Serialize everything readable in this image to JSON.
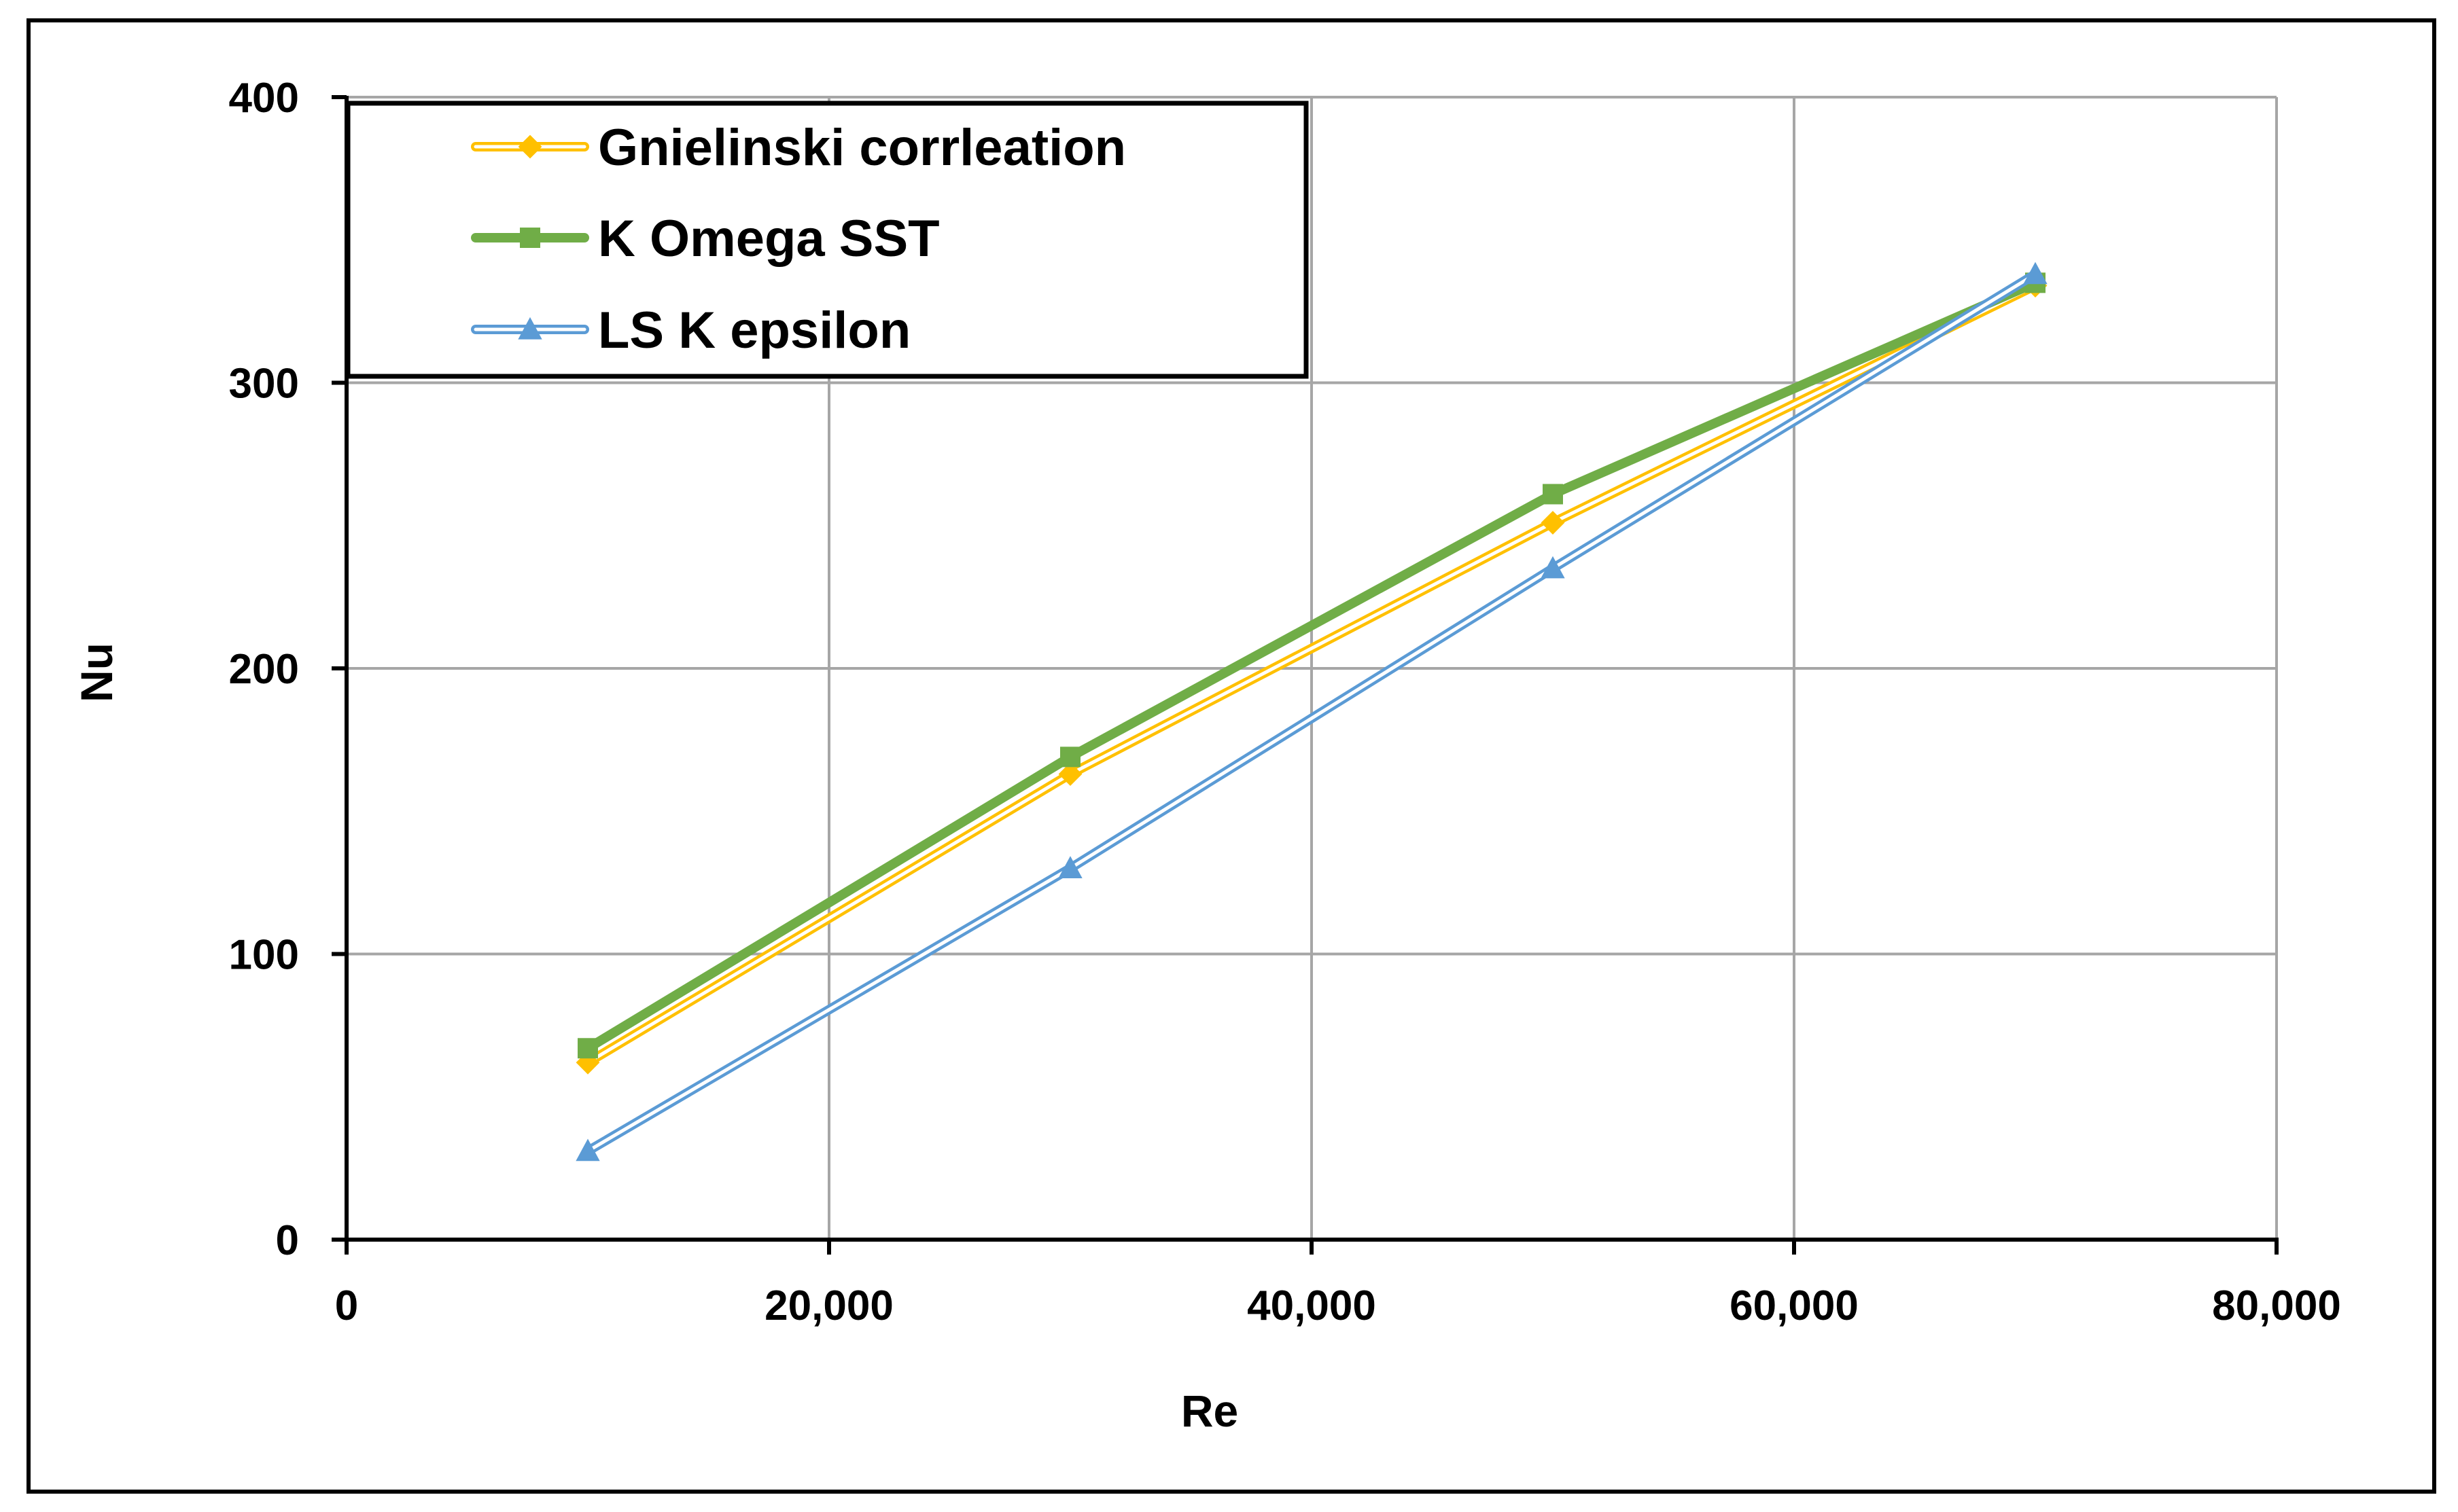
{
  "chart_data": {
    "type": "line",
    "title": "",
    "xlabel": "Re",
    "ylabel": "Nu",
    "xlim": [
      0,
      80000
    ],
    "ylim": [
      0,
      400
    ],
    "x_ticks": [
      0,
      20000,
      40000,
      60000,
      80000
    ],
    "x_tick_labels": [
      "0",
      "20,000",
      "40,000",
      "60,000",
      "80,000"
    ],
    "y_ticks": [
      0,
      100,
      200,
      300,
      400
    ],
    "y_tick_labels": [
      "0",
      "100",
      "200",
      "300",
      "400"
    ],
    "grid": true,
    "legend_position": "top-left",
    "x": [
      10000,
      30000,
      50000,
      70000
    ],
    "series": [
      {
        "name": "Gnielinski corrleation",
        "values": [
          62,
          163,
          251,
          334
        ],
        "color": "#FFC000",
        "marker": "diamond",
        "line_style": "double"
      },
      {
        "name": "K Omega SST",
        "values": [
          67,
          169,
          261,
          335
        ],
        "color": "#70AD47",
        "marker": "square",
        "line_style": "thick"
      },
      {
        "name": "LS K epsilon",
        "values": [
          31,
          130,
          235,
          338
        ],
        "color": "#5B9BD5",
        "marker": "triangle",
        "line_style": "double"
      }
    ]
  }
}
